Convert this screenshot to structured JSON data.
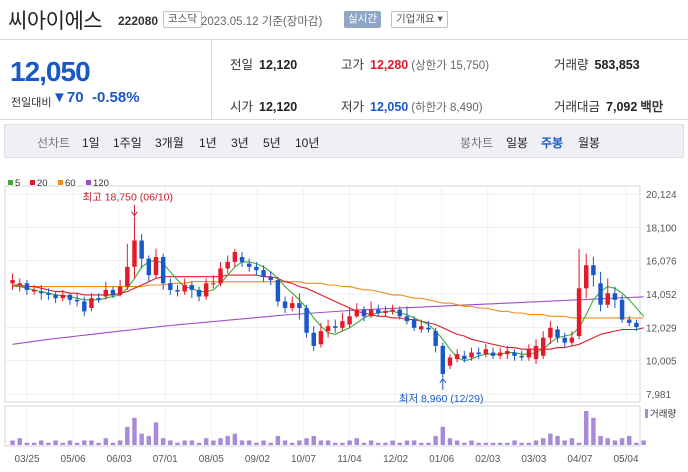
{
  "header": {
    "name": "씨아이에스",
    "code": "222080",
    "market": "코스닥",
    "date": "2023.05.12 기준(장마감)",
    "live": "실시간",
    "overview": "기업개요 ▾"
  },
  "summary": {
    "price": "12,050",
    "change_label": "전일대비",
    "change": "▼70",
    "change_pct": "-0.58%",
    "rows": [
      {
        "label": "전일",
        "value": "12,120"
      },
      {
        "label": "고가",
        "value": "12,280",
        "sub": "(상한가 15,750)"
      },
      {
        "label": "거래량",
        "value": "583,853"
      },
      {
        "label": "시가",
        "value": "12,120"
      },
      {
        "label": "저가",
        "value": "12,050",
        "sub": "(하한가 8,490)"
      },
      {
        "label": "거래대금",
        "value": "7,092",
        "unit": "백만"
      }
    ]
  },
  "tabs": {
    "line_label": "선차트",
    "line_tabs": [
      "1일",
      "1주일",
      "3개월",
      "1년",
      "3년",
      "5년",
      "10년"
    ],
    "candle_label": "봉차트",
    "candle_tabs": [
      "일봉",
      "주봉",
      "월봉"
    ],
    "selected_candle": "주봉"
  },
  "colors": {
    "up": "#e4192a",
    "down": "#1a57c8",
    "ma5": "#3aaa35",
    "ma20": "#e4192a",
    "ma60": "#f08c1a",
    "ma120": "#9b4fc8",
    "volume": "#a98ad8"
  },
  "chart_data": {
    "type": "candlestick",
    "legend": [
      "5",
      "20",
      "60",
      "120"
    ],
    "y_ticks": [
      7981,
      10005,
      12029,
      14052,
      16076,
      18100,
      20124
    ],
    "ylim": [
      7981,
      20124
    ],
    "x_labels": [
      "03/25",
      "05/06",
      "06/03",
      "07/01",
      "08/05",
      "09/02",
      "10/07",
      "11/04",
      "12/02",
      "01/06",
      "02/03",
      "03/03",
      "04/07",
      "05/04"
    ],
    "high_annotation": "최고 18,750 (06/10)",
    "low_annotation": "최저 8,960 (12/29)",
    "volume_label": "거래량",
    "candles": [
      {
        "o": 14700,
        "c": 14900,
        "h": 15300,
        "l": 14300
      },
      {
        "o": 14600,
        "c": 14700,
        "h": 15000,
        "l": 14200
      },
      {
        "o": 14700,
        "c": 14300,
        "h": 14900,
        "l": 14000
      },
      {
        "o": 14200,
        "c": 14300,
        "h": 14600,
        "l": 14000
      },
      {
        "o": 14200,
        "c": 14100,
        "h": 14600,
        "l": 13700
      },
      {
        "o": 14100,
        "c": 14000,
        "h": 14400,
        "l": 13700
      },
      {
        "o": 14000,
        "c": 13800,
        "h": 14200,
        "l": 13500
      },
      {
        "o": 13800,
        "c": 14000,
        "h": 14300,
        "l": 13600
      },
      {
        "o": 14000,
        "c": 13700,
        "h": 14100,
        "l": 13400
      },
      {
        "o": 13700,
        "c": 13600,
        "h": 14100,
        "l": 13300
      },
      {
        "o": 13600,
        "c": 13000,
        "h": 13900,
        "l": 12700
      },
      {
        "o": 13200,
        "c": 13800,
        "h": 14100,
        "l": 13000
      },
      {
        "o": 13800,
        "c": 13700,
        "h": 14100,
        "l": 13500
      },
      {
        "o": 13900,
        "c": 14300,
        "h": 14800,
        "l": 13700
      },
      {
        "o": 14300,
        "c": 14000,
        "h": 14500,
        "l": 13800
      },
      {
        "o": 14000,
        "c": 14500,
        "h": 14900,
        "l": 13900
      },
      {
        "o": 14500,
        "c": 15700,
        "h": 17100,
        "l": 14300
      },
      {
        "o": 15700,
        "c": 17300,
        "h": 18750,
        "l": 15000
      },
      {
        "o": 17300,
        "c": 16200,
        "h": 17700,
        "l": 15600
      },
      {
        "o": 16200,
        "c": 15200,
        "h": 16400,
        "l": 14800
      },
      {
        "o": 15200,
        "c": 16300,
        "h": 16800,
        "l": 15000
      },
      {
        "o": 16300,
        "c": 14700,
        "h": 16500,
        "l": 14300
      },
      {
        "o": 14700,
        "c": 14300,
        "h": 15000,
        "l": 14000
      },
      {
        "o": 14300,
        "c": 14200,
        "h": 14600,
        "l": 13900
      },
      {
        "o": 14200,
        "c": 14600,
        "h": 15000,
        "l": 14000
      },
      {
        "o": 14600,
        "c": 14300,
        "h": 14800,
        "l": 13800
      },
      {
        "o": 14300,
        "c": 13900,
        "h": 14500,
        "l": 13600
      },
      {
        "o": 13900,
        "c": 14700,
        "h": 15000,
        "l": 13700
      },
      {
        "o": 14700,
        "c": 14700,
        "h": 15200,
        "l": 14400
      },
      {
        "o": 14700,
        "c": 15600,
        "h": 16000,
        "l": 14500
      },
      {
        "o": 15600,
        "c": 16000,
        "h": 16400,
        "l": 15300
      },
      {
        "o": 16000,
        "c": 16600,
        "h": 16800,
        "l": 15700
      },
      {
        "o": 16300,
        "c": 16000,
        "h": 16600,
        "l": 15700
      },
      {
        "o": 15900,
        "c": 15700,
        "h": 16200,
        "l": 15400
      },
      {
        "o": 15700,
        "c": 15500,
        "h": 16000,
        "l": 15200
      },
      {
        "o": 15500,
        "c": 15100,
        "h": 15800,
        "l": 14800
      },
      {
        "o": 15100,
        "c": 14900,
        "h": 15400,
        "l": 14600
      },
      {
        "o": 14900,
        "c": 13600,
        "h": 15100,
        "l": 13300
      },
      {
        "o": 13600,
        "c": 13200,
        "h": 13900,
        "l": 12900
      },
      {
        "o": 13200,
        "c": 13500,
        "h": 13900,
        "l": 13000
      },
      {
        "o": 13500,
        "c": 13200,
        "h": 14100,
        "l": 12500
      },
      {
        "o": 13200,
        "c": 11700,
        "h": 13400,
        "l": 11400
      },
      {
        "o": 11700,
        "c": 10900,
        "h": 12100,
        "l": 10600
      },
      {
        "o": 11000,
        "c": 11800,
        "h": 12300,
        "l": 10800
      },
      {
        "o": 11800,
        "c": 12100,
        "h": 12500,
        "l": 11400
      },
      {
        "o": 12100,
        "c": 12000,
        "h": 12500,
        "l": 11700
      },
      {
        "o": 12000,
        "c": 12400,
        "h": 12900,
        "l": 11800
      },
      {
        "o": 12200,
        "c": 12700,
        "h": 13200,
        "l": 12000
      },
      {
        "o": 12700,
        "c": 13100,
        "h": 13500,
        "l": 12600
      },
      {
        "o": 13100,
        "c": 12700,
        "h": 13300,
        "l": 12400
      },
      {
        "o": 12700,
        "c": 13100,
        "h": 13600,
        "l": 12600
      },
      {
        "o": 13100,
        "c": 12900,
        "h": 13400,
        "l": 12700
      },
      {
        "o": 12900,
        "c": 13000,
        "h": 13300,
        "l": 12700
      },
      {
        "o": 13000,
        "c": 13100,
        "h": 13400,
        "l": 12800
      },
      {
        "o": 13100,
        "c": 12700,
        "h": 13300,
        "l": 12500
      },
      {
        "o": 12700,
        "c": 12400,
        "h": 13300,
        "l": 12200
      },
      {
        "o": 12500,
        "c": 12000,
        "h": 12700,
        "l": 11800
      },
      {
        "o": 11900,
        "c": 12100,
        "h": 12500,
        "l": 11700
      },
      {
        "o": 12000,
        "c": 11900,
        "h": 12400,
        "l": 11700
      },
      {
        "o": 11800,
        "c": 10900,
        "h": 12000,
        "l": 10500
      },
      {
        "o": 10900,
        "c": 9200,
        "h": 11100,
        "l": 8960
      },
      {
        "o": 9700,
        "c": 10200,
        "h": 10400,
        "l": 9500
      },
      {
        "o": 10100,
        "c": 10400,
        "h": 10700,
        "l": 9900
      },
      {
        "o": 10300,
        "c": 10100,
        "h": 10600,
        "l": 9900
      },
      {
        "o": 10200,
        "c": 10500,
        "h": 10800,
        "l": 10000
      },
      {
        "o": 10500,
        "c": 10400,
        "h": 10800,
        "l": 10100
      },
      {
        "o": 10400,
        "c": 10700,
        "h": 11000,
        "l": 10200
      },
      {
        "o": 10500,
        "c": 10300,
        "h": 10800,
        "l": 10100
      },
      {
        "o": 10300,
        "c": 10500,
        "h": 10800,
        "l": 10100
      },
      {
        "o": 10400,
        "c": 10600,
        "h": 10900,
        "l": 10100
      },
      {
        "o": 10500,
        "c": 10300,
        "h": 10700,
        "l": 10000
      },
      {
        "o": 10300,
        "c": 10200,
        "h": 10600,
        "l": 10000
      },
      {
        "o": 10200,
        "c": 10700,
        "h": 11000,
        "l": 10000
      },
      {
        "o": 10100,
        "c": 10900,
        "h": 11300,
        "l": 9800
      },
      {
        "o": 10300,
        "c": 11400,
        "h": 11800,
        "l": 10100
      },
      {
        "o": 11400,
        "c": 12000,
        "h": 12400,
        "l": 11000
      },
      {
        "o": 11900,
        "c": 11400,
        "h": 12100,
        "l": 11100
      },
      {
        "o": 11400,
        "c": 11100,
        "h": 11700,
        "l": 10800
      },
      {
        "o": 11100,
        "c": 11400,
        "h": 11800,
        "l": 10900
      },
      {
        "o": 11500,
        "c": 14400,
        "h": 16800,
        "l": 11300
      },
      {
        "o": 14400,
        "c": 15800,
        "h": 16500,
        "l": 13800
      },
      {
        "o": 15800,
        "c": 15200,
        "h": 16300,
        "l": 14500
      },
      {
        "o": 14700,
        "c": 13400,
        "h": 15400,
        "l": 13000
      },
      {
        "o": 13400,
        "c": 14100,
        "h": 15000,
        "l": 13200
      },
      {
        "o": 14100,
        "c": 13700,
        "h": 14500,
        "l": 13200
      },
      {
        "o": 13700,
        "c": 12500,
        "h": 14000,
        "l": 12300
      },
      {
        "o": 12500,
        "c": 12300,
        "h": 12700,
        "l": 12100
      },
      {
        "o": 12300,
        "c": 12050,
        "h": 12500,
        "l": 11800
      }
    ],
    "ma5": [
      14600,
      14500,
      14400,
      14300,
      14200,
      14100,
      14000,
      13950,
      13900,
      13800,
      13700,
      13700,
      13700,
      13800,
      13900,
      14000,
      14400,
      15000,
      15700,
      16000,
      16100,
      15900,
      15400,
      14900,
      14500,
      14400,
      14200,
      14200,
      14300,
      14700,
      15200,
      15700,
      16000,
      16000,
      15900,
      15700,
      15400,
      15000,
      14500,
      14100,
      13700,
      13200,
      12600,
      12100,
      11700,
      11600,
      11800,
      12000,
      12300,
      12600,
      12800,
      12900,
      13000,
      13000,
      12900,
      12800,
      12600,
      12400,
      12200,
      11800,
      11300,
      10700,
      10200,
      10000,
      10100,
      10300,
      10400,
      10400,
      10400,
      10500,
      10500,
      10400,
      10400,
      10500,
      10700,
      11100,
      11400,
      11500,
      11600,
      12000,
      12800,
      13700,
      14200,
      14500,
      14400,
      14100,
      13700,
      13200,
      12700
    ],
    "ma20": [
      14600,
      14600,
      14500,
      14500,
      14400,
      14300,
      14200,
      14200,
      14100,
      14100,
      14000,
      14000,
      14000,
      14000,
      14000,
      14100,
      14200,
      14400,
      14600,
      14800,
      15000,
      15100,
      15100,
      15100,
      15100,
      15100,
      15100,
      15100,
      15100,
      15100,
      15200,
      15200,
      15200,
      15200,
      15200,
      15100,
      15100,
      15000,
      14800,
      14700,
      14500,
      14400,
      14200,
      14000,
      13800,
      13600,
      13400,
      13200,
      13000,
      12900,
      12800,
      12700,
      12700,
      12600,
      12600,
      12500,
      12500,
      12400,
      12300,
      12200,
      12000,
      11800,
      11600,
      11500,
      11300,
      11200,
      11100,
      11000,
      10900,
      10800,
      10800,
      10700,
      10700,
      10700,
      10700,
      10700,
      10800,
      10800,
      10900,
      11000,
      11200,
      11400,
      11600,
      11700,
      11800,
      11900,
      11900,
      11900,
      12000
    ],
    "ma60": [
      14500,
      14500,
      14500,
      14500,
      14500,
      14500,
      14500,
      14500,
      14500,
      14500,
      14500,
      14500,
      14500,
      14500,
      14500,
      14500,
      14500,
      14500,
      14500,
      14600,
      14600,
      14600,
      14700,
      14700,
      14700,
      14800,
      14800,
      14800,
      14800,
      14800,
      14800,
      14800,
      14800,
      14800,
      14800,
      14800,
      14800,
      14800,
      14800,
      14800,
      14800,
      14700,
      14700,
      14700,
      14600,
      14600,
      14500,
      14500,
      14400,
      14300,
      14300,
      14200,
      14100,
      14000,
      14000,
      13900,
      13800,
      13800,
      13700,
      13600,
      13500,
      13500,
      13400,
      13300,
      13300,
      13200,
      13200,
      13100,
      13000,
      13000,
      12900,
      12900,
      12800,
      12800,
      12800,
      12700,
      12700,
      12700,
      12600,
      12600,
      12600,
      12600,
      12600,
      12600,
      12600,
      12600,
      12600,
      12600,
      12600
    ],
    "ma120": [
      11000,
      11060,
      11120,
      11180,
      11240,
      11300,
      11350,
      11400,
      11450,
      11500,
      11550,
      11600,
      11650,
      11700,
      11750,
      11800,
      11850,
      11900,
      11950,
      12000,
      12050,
      12100,
      12140,
      12180,
      12220,
      12260,
      12300,
      12340,
      12380,
      12420,
      12460,
      12500,
      12540,
      12580,
      12620,
      12660,
      12700,
      12740,
      12780,
      12810,
      12840,
      12870,
      12900,
      12930,
      12960,
      12990,
      13020,
      13050,
      13080,
      13100,
      13120,
      13140,
      13160,
      13180,
      13200,
      13220,
      13240,
      13260,
      13280,
      13300,
      13320,
      13340,
      13360,
      13380,
      13400,
      13420,
      13440,
      13460,
      13480,
      13500,
      13520,
      13540,
      13560,
      13580,
      13600,
      13620,
      13640,
      13660,
      13680,
      13700,
      13720,
      13740,
      13760,
      13780,
      13800,
      13820,
      13840,
      13860,
      13880
    ],
    "volume": [
      2,
      3,
      1,
      1,
      2,
      1,
      2,
      1,
      2,
      1,
      2,
      2,
      1,
      3,
      1,
      2,
      8,
      12,
      5,
      4,
      10,
      3,
      2,
      1,
      2,
      2,
      1,
      3,
      2,
      3,
      4,
      5,
      2,
      2,
      1,
      2,
      1,
      4,
      2,
      1,
      2,
      3,
      4,
      2,
      2,
      1,
      1,
      2,
      3,
      1,
      2,
      1,
      1,
      2,
      1,
      2,
      2,
      1,
      1,
      4,
      8,
      3,
      2,
      1,
      2,
      1,
      1,
      1,
      1,
      1,
      2,
      1,
      1,
      2,
      3,
      5,
      4,
      2,
      3,
      1,
      15,
      12,
      4,
      3,
      2,
      3,
      4,
      1,
      2
    ]
  }
}
